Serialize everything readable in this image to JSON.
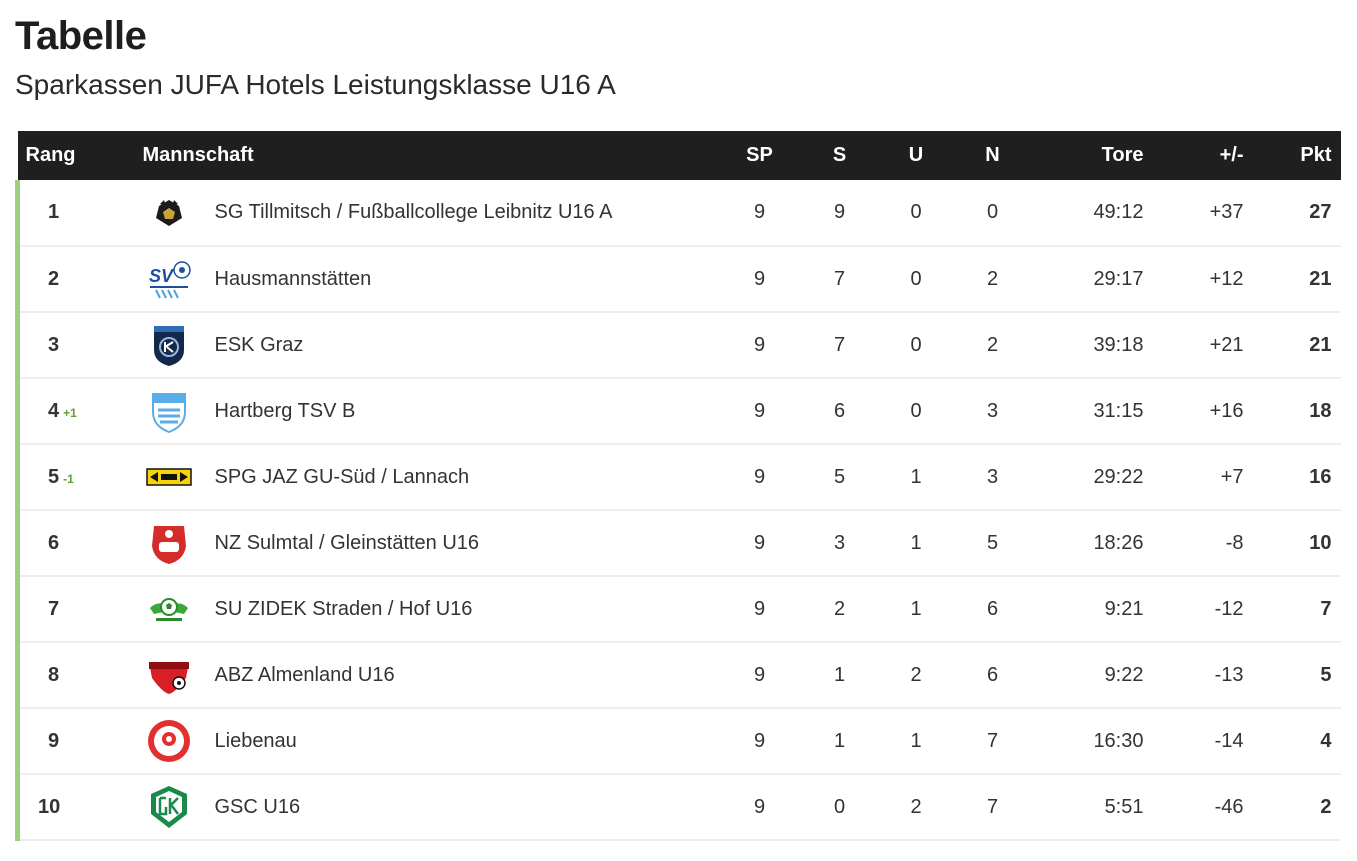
{
  "header": {
    "title": "Tabelle",
    "subtitle": "Sparkassen JUFA Hotels Leistungsklasse U16 A"
  },
  "table": {
    "columns": {
      "rang": "Rang",
      "mannschaft": "Mannschaft",
      "sp": "SP",
      "s": "S",
      "u": "U",
      "n": "N",
      "tore": "Tore",
      "diff": "+/-",
      "pkt": "Pkt"
    },
    "rows": [
      {
        "rank": "1",
        "change": "",
        "team": "SG Tillmitsch / Fußballcollege Leibnitz U16 A",
        "logo": "tillmitsch-crest-icon",
        "sp": "9",
        "s": "9",
        "u": "0",
        "n": "0",
        "tore": "49:12",
        "diff": "+37",
        "pkt": "27"
      },
      {
        "rank": "2",
        "change": "",
        "team": "Hausmannstätten",
        "logo": "sv-hausmannstaetten-logo-icon",
        "sp": "9",
        "s": "7",
        "u": "0",
        "n": "2",
        "tore": "29:17",
        "diff": "+12",
        "pkt": "21"
      },
      {
        "rank": "3",
        "change": "",
        "team": "ESK Graz",
        "logo": "esk-graz-shield-icon",
        "sp": "9",
        "s": "7",
        "u": "0",
        "n": "2",
        "tore": "39:18",
        "diff": "+21",
        "pkt": "21"
      },
      {
        "rank": "4",
        "change": "+1",
        "team": "Hartberg TSV B",
        "logo": "hartberg-shield-icon",
        "sp": "9",
        "s": "6",
        "u": "0",
        "n": "3",
        "tore": "31:15",
        "diff": "+16",
        "pkt": "18"
      },
      {
        "rank": "5",
        "change": "-1",
        "team": "SPG JAZ GU-Süd / Lannach",
        "logo": "jaz-banner-icon",
        "sp": "9",
        "s": "5",
        "u": "1",
        "n": "3",
        "tore": "29:22",
        "diff": "+7",
        "pkt": "16"
      },
      {
        "rank": "6",
        "change": "",
        "team": "NZ Sulmtal / Gleinstätten U16",
        "logo": "sulmtal-shield-icon",
        "sp": "9",
        "s": "3",
        "u": "1",
        "n": "5",
        "tore": "18:26",
        "diff": "-8",
        "pkt": "10"
      },
      {
        "rank": "7",
        "change": "",
        "team": "SU ZIDEK Straden / Hof U16",
        "logo": "straden-ball-icon",
        "sp": "9",
        "s": "2",
        "u": "1",
        "n": "6",
        "tore": "9:21",
        "diff": "-12",
        "pkt": "7"
      },
      {
        "rank": "8",
        "change": "",
        "team": "ABZ Almenland U16",
        "logo": "almenland-shield-icon",
        "sp": "9",
        "s": "1",
        "u": "2",
        "n": "6",
        "tore": "9:22",
        "diff": "-13",
        "pkt": "5"
      },
      {
        "rank": "9",
        "change": "",
        "team": "Liebenau",
        "logo": "liebenau-circle-icon",
        "sp": "9",
        "s": "1",
        "u": "1",
        "n": "7",
        "tore": "16:30",
        "diff": "-14",
        "pkt": "4"
      },
      {
        "rank": "10",
        "change": "",
        "team": "GSC U16",
        "logo": "gsc-shield-icon",
        "sp": "9",
        "s": "0",
        "u": "2",
        "n": "7",
        "tore": "5:51",
        "diff": "-46",
        "pkt": "2"
      }
    ]
  },
  "colors": {
    "header_bg": "#1f1f1f",
    "row_accent": "#9ecf80",
    "rank_change": "#5e9e35"
  }
}
